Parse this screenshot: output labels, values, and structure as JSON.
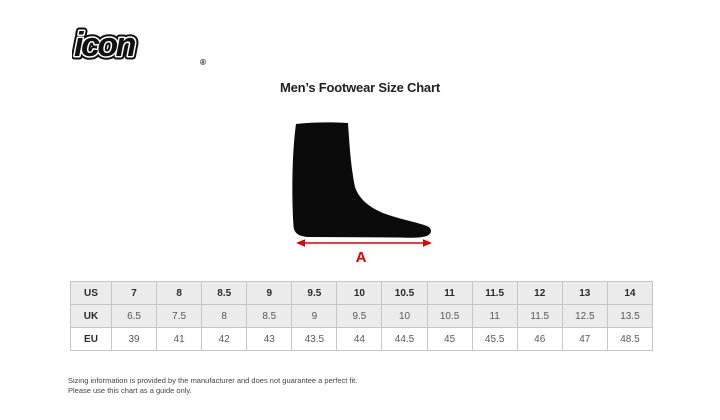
{
  "logo": {
    "text": "icon",
    "registered": "®",
    "color": "#111111"
  },
  "title": "Men’s Footwear Size Chart",
  "figure": {
    "label": "A",
    "arrow_color": "#e00000",
    "foot_color": "#0b0b0b"
  },
  "chart_data": {
    "type": "table",
    "title": "Men’s Footwear Size Chart",
    "row_headers": [
      "US",
      "UK",
      "EU"
    ],
    "rows": [
      {
        "label": "US",
        "values": [
          "7",
          "8",
          "8.5",
          "9",
          "9.5",
          "10",
          "10.5",
          "11",
          "11.5",
          "12",
          "13",
          "14"
        ]
      },
      {
        "label": "UK",
        "values": [
          "6.5",
          "7.5",
          "8",
          "8.5",
          "9",
          "9.5",
          "10",
          "10.5",
          "11",
          "11.5",
          "12.5",
          "13.5"
        ]
      },
      {
        "label": "EU",
        "values": [
          "39",
          "41",
          "42",
          "43",
          "43.5",
          "44",
          "44.5",
          "45",
          "45.5",
          "46",
          "47",
          "48.5"
        ]
      }
    ],
    "layout": {
      "grid": true,
      "header_row_background": "#ececec",
      "measurement_label": "A"
    }
  },
  "footer": {
    "line1": "Sizing information is provided by the manufacturer and does not guarantee a perfect fit.",
    "line2": "Please use this chart as a guide only."
  }
}
